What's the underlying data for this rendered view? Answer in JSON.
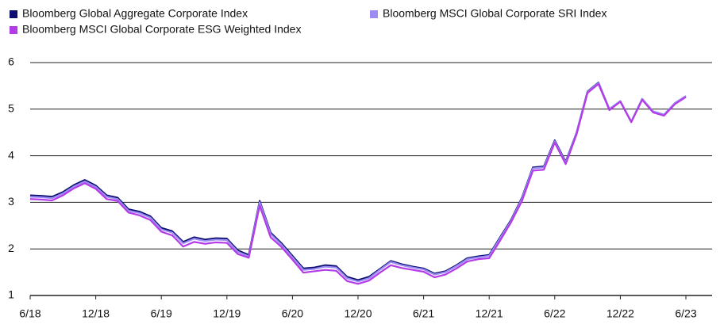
{
  "chart_data": {
    "type": "line",
    "categories": [
      "6/18",
      null,
      null,
      null,
      null,
      null,
      "12/18",
      null,
      null,
      null,
      null,
      null,
      "6/19",
      null,
      null,
      null,
      null,
      null,
      "12/19",
      null,
      null,
      null,
      null,
      null,
      "6/20",
      null,
      null,
      null,
      null,
      null,
      "12/20",
      null,
      null,
      null,
      null,
      null,
      "6/21",
      null,
      null,
      null,
      null,
      null,
      "12/21",
      null,
      null,
      null,
      null,
      null,
      "6/22",
      null,
      null,
      null,
      null,
      null,
      "12/22",
      null,
      null,
      null,
      null,
      null,
      "6/23"
    ],
    "series": [
      {
        "name": "Bloomberg Global Aggregate Corporate Index",
        "color": "#0b0e6e",
        "values": [
          3.15,
          3.14,
          3.12,
          3.22,
          3.37,
          3.48,
          3.36,
          3.15,
          3.1,
          2.85,
          2.8,
          2.7,
          2.45,
          2.38,
          2.15,
          2.25,
          2.2,
          2.23,
          2.22,
          1.97,
          1.87,
          3.03,
          2.35,
          2.12,
          1.85,
          1.58,
          1.6,
          1.65,
          1.63,
          1.4,
          1.33,
          1.4,
          1.57,
          1.74,
          1.67,
          1.62,
          1.58,
          1.47,
          1.52,
          1.65,
          1.8,
          1.84,
          1.87,
          2.25,
          2.62,
          3.1,
          3.75,
          3.77,
          4.33,
          3.87,
          4.5,
          5.38,
          5.57,
          5.0,
          5.17,
          4.73,
          5.22,
          4.95,
          4.88,
          5.13,
          5.28
        ]
      },
      {
        "name": "Bloomberg MSCI Global Corporate SRI Index",
        "color": "#9b8cf5",
        "values": [
          3.12,
          3.11,
          3.09,
          3.19,
          3.34,
          3.45,
          3.33,
          3.12,
          3.07,
          2.82,
          2.77,
          2.67,
          2.42,
          2.35,
          2.12,
          2.22,
          2.17,
          2.2,
          2.19,
          1.94,
          1.84,
          3.0,
          2.32,
          2.09,
          1.82,
          1.55,
          1.57,
          1.62,
          1.6,
          1.37,
          1.3,
          1.37,
          1.55,
          1.72,
          1.65,
          1.6,
          1.56,
          1.45,
          1.5,
          1.63,
          1.78,
          1.82,
          1.85,
          2.23,
          2.6,
          3.08,
          3.73,
          3.75,
          4.31,
          3.85,
          4.49,
          5.37,
          5.56,
          5.0,
          5.17,
          4.73,
          5.22,
          4.95,
          4.88,
          5.13,
          5.28
        ]
      },
      {
        "name": "Bloomberg MSCI Global Corporate ESG Weighted Index",
        "color": "#b43be8",
        "values": [
          3.07,
          3.06,
          3.04,
          3.15,
          3.3,
          3.41,
          3.29,
          3.07,
          3.03,
          2.78,
          2.72,
          2.62,
          2.37,
          2.29,
          2.05,
          2.15,
          2.11,
          2.14,
          2.13,
          1.89,
          1.81,
          2.93,
          2.25,
          2.04,
          1.77,
          1.49,
          1.52,
          1.55,
          1.53,
          1.31,
          1.25,
          1.32,
          1.49,
          1.65,
          1.59,
          1.55,
          1.51,
          1.39,
          1.45,
          1.58,
          1.73,
          1.78,
          1.8,
          2.18,
          2.57,
          3.03,
          3.68,
          3.7,
          4.28,
          3.82,
          4.46,
          5.35,
          5.54,
          4.98,
          5.16,
          4.72,
          5.2,
          4.93,
          4.86,
          5.11,
          5.26
        ]
      }
    ],
    "ylim": [
      1,
      6
    ],
    "yticks": [
      1,
      2,
      3,
      4,
      5,
      6
    ],
    "grid": true
  }
}
